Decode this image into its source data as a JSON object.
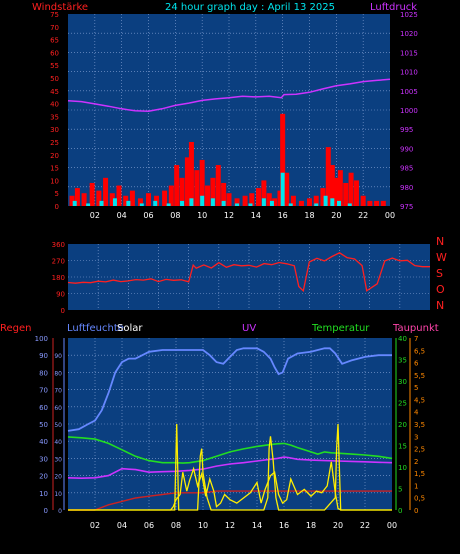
{
  "chart_data": [
    {
      "type": "line",
      "title": "24 hour graph day : April 13 2025",
      "ylabel_left": "Windstärke",
      "ylabel_right": "Luftdruck",
      "y_left_ticks": [
        "0",
        "5",
        "10",
        "15",
        "20",
        "25",
        "30",
        "35",
        "40",
        "45",
        "50",
        "55",
        "60",
        "65",
        "70",
        "75"
      ],
      "y_right_ticks": [
        "975",
        "980",
        "985",
        "990",
        "995",
        "1000",
        "1005",
        "1010",
        "1015",
        "1020",
        "1025"
      ],
      "x_ticks": [
        "02",
        "04",
        "06",
        "08",
        "10",
        "12",
        "14",
        "16",
        "18",
        "20",
        "22",
        "00"
      ],
      "ylim_left": [
        0,
        75
      ],
      "ylim_right": [
        975,
        1025
      ],
      "series": [
        {
          "name": "Luftdruck",
          "color": "#cc33ff",
          "x": [
            0,
            1,
            2,
            3,
            4,
            5,
            6,
            7,
            8,
            9,
            10,
            11,
            12,
            13,
            14,
            15,
            15.9,
            16.1,
            17,
            18,
            19,
            20,
            21,
            22,
            23,
            24
          ],
          "y": [
            1002.4,
            1002.2,
            1001.6,
            1001.0,
            1000.3,
            999.8,
            999.7,
            1000.3,
            1001.2,
            1001.8,
            1002.5,
            1002.9,
            1003.2,
            1003.6,
            1003.4,
            1003.6,
            1003.2,
            1004.0,
            1004.1,
            1004.6,
            1005.5,
            1006.3,
            1006.8,
            1007.4,
            1007.7,
            1008.0
          ]
        },
        {
          "name": "Windböen",
          "color": "#ff0000",
          "x": [
            0.3,
            0.7,
            1.2,
            1.8,
            2.3,
            2.8,
            3.3,
            3.8,
            4.3,
            4.8,
            5.4,
            6,
            6.6,
            7.2,
            7.7,
            8.1,
            8.5,
            8.9,
            9.2,
            9.6,
            10,
            10.4,
            10.8,
            11.2,
            11.6,
            12,
            12.6,
            13.2,
            13.7,
            14.2,
            14.6,
            15,
            15.4,
            15.8,
            16,
            16.3,
            16.8,
            17.4,
            18,
            18.5,
            19,
            19.4,
            19.7,
            20,
            20.3,
            20.7,
            21.1,
            21.5,
            22,
            22.5,
            23,
            23.5
          ],
          "y": [
            4,
            7,
            5,
            9,
            6,
            11,
            5,
            8,
            4,
            6,
            3,
            5,
            4,
            6,
            8,
            16,
            11,
            19,
            25,
            14,
            18,
            8,
            11,
            16,
            9,
            5,
            3,
            4,
            5,
            7,
            10,
            5,
            3,
            6,
            36,
            13,
            4,
            2,
            3,
            4,
            7,
            23,
            16,
            11,
            14,
            9,
            13,
            10,
            4,
            2,
            2,
            2
          ]
        },
        {
          "name": "Windstärke",
          "color": "#00e5ee",
          "x": [
            0.5,
            1.5,
            2.5,
            3.5,
            4.5,
            5.5,
            6.5,
            7.5,
            8.5,
            9.2,
            10,
            10.8,
            11.6,
            12.6,
            13.6,
            14.6,
            15.2,
            16,
            16.6,
            17.5,
            18.5,
            19.2,
            19.7,
            20.2,
            21,
            22,
            23
          ],
          "y": [
            2,
            1,
            2,
            3,
            2,
            1,
            2,
            1,
            2,
            3,
            4,
            3,
            2,
            1,
            1,
            3,
            2,
            13,
            1,
            0,
            1,
            4,
            3,
            2,
            1,
            0,
            0
          ]
        }
      ]
    },
    {
      "type": "scatter",
      "y_left_ticks": [
        "0",
        "90",
        "180",
        "270",
        "360"
      ],
      "y_right_labels": [
        "N",
        "W",
        "S",
        "O",
        "N"
      ],
      "ylim": [
        0,
        360
      ],
      "series": [
        {
          "name": "Windrichtung",
          "color": "#ff2020",
          "x": [
            0,
            0.5,
            1,
            1.5,
            2,
            2.5,
            3,
            3.5,
            4,
            4.5,
            5,
            5.5,
            6,
            6.5,
            7,
            7.5,
            8,
            8.3,
            8.5,
            9,
            9.5,
            10,
            10.5,
            11,
            11.5,
            12,
            12.5,
            13,
            13.5,
            14,
            14.5,
            15,
            15.3,
            15.6,
            16,
            16.5,
            17,
            17.5,
            18,
            18.5,
            19,
            19.5,
            19.8,
            20.5,
            21,
            21.5,
            22,
            22.5,
            23,
            23.5,
            24
          ],
          "y": [
            150,
            146,
            151,
            149,
            157,
            153,
            163,
            155,
            159,
            166,
            163,
            170,
            155,
            167,
            162,
            165,
            154,
            245,
            228,
            246,
            229,
            258,
            233,
            247,
            241,
            244,
            234,
            253,
            247,
            259,
            252,
            241,
            128,
            105,
            262,
            282,
            268,
            292,
            312,
            286,
            278,
            242,
            105,
            143,
            268,
            283,
            268,
            271,
            242,
            236,
            236
          ]
        }
      ]
    },
    {
      "type": "line",
      "labels": [
        "Regen",
        "Luftfeuchte",
        "Solar",
        "UV",
        "Temperatur",
        "Taupunkt"
      ],
      "axis_regen_ticks": [
        "0",
        "10",
        "20",
        "30",
        "40",
        "50",
        "60",
        "70",
        "80",
        "90",
        "100"
      ],
      "axis_feuchte_ticks": [
        "0",
        "10",
        "20",
        "30",
        "40",
        "50",
        "60",
        "70",
        "80",
        "90"
      ],
      "axis_temp_ticks": [
        "0",
        "5",
        "10",
        "15",
        "20",
        "25",
        "30",
        "35",
        "40"
      ],
      "axis_uv_ticks": [
        "0",
        "0,5",
        "1",
        "1,5",
        "2",
        "2,5",
        "3",
        "3,5",
        "4",
        "4,5",
        "5",
        "5,5",
        "6",
        "6,5",
        "7"
      ],
      "x_ticks": [
        "02",
        "04",
        "06",
        "08",
        "10",
        "12",
        "14",
        "16",
        "18",
        "20",
        "22",
        "00"
      ],
      "ylim_percent": [
        0,
        100
      ],
      "series": [
        {
          "name": "Luftfeuchte",
          "color": "#6688ff",
          "x": [
            0,
            0.8,
            1.5,
            2,
            2.5,
            3,
            3.5,
            4,
            4.5,
            5,
            5.5,
            6,
            7,
            8,
            9,
            10,
            10.5,
            11,
            11.5,
            12,
            12.5,
            13,
            14,
            14.5,
            15,
            15.3,
            15.6,
            15.9,
            16.3,
            17,
            18,
            19,
            19.4,
            19.8,
            20.3,
            21,
            22,
            23,
            24
          ],
          "y": [
            46,
            47,
            50,
            52,
            58,
            68,
            80,
            86,
            88,
            88,
            90,
            92,
            93,
            93,
            93,
            93,
            90,
            86,
            85,
            89,
            93,
            94,
            94,
            92,
            88,
            83,
            79,
            80,
            88,
            91,
            92,
            94,
            94,
            91,
            85,
            87,
            89,
            90,
            90
          ]
        },
        {
          "name": "Temperatur",
          "color": "#22dd22",
          "x": [
            0,
            1,
            2,
            3,
            4,
            5,
            6,
            7,
            8,
            8.5,
            9,
            10,
            11,
            12,
            13,
            14,
            15,
            15.5,
            16,
            16.5,
            17,
            17.5,
            18,
            18.5,
            19,
            19.5,
            20,
            21,
            22,
            23,
            24
          ],
          "y": [
            17,
            16.8,
            16.5,
            15.5,
            14,
            12.5,
            11.5,
            11,
            11,
            10.9,
            11,
            11.5,
            12.5,
            13.5,
            14.2,
            14.8,
            15.2,
            15.4,
            15.5,
            15.1,
            14.5,
            14,
            13.5,
            13,
            13.5,
            13.3,
            13.2,
            13,
            12.8,
            12.5,
            12
          ]
        },
        {
          "name": "Taupunkt",
          "color": "#cc33ff",
          "x": [
            0,
            1,
            2,
            3,
            4,
            5,
            6,
            7,
            8,
            9,
            10,
            11,
            12,
            13,
            14,
            15,
            15.5,
            16,
            16.3,
            17,
            18,
            19,
            20,
            21,
            22,
            23,
            24
          ],
          "y": [
            7.5,
            7.4,
            7.5,
            8,
            9.6,
            9.4,
            8.8,
            8.9,
            9,
            9.2,
            9.5,
            10.2,
            10.7,
            11,
            11.4,
            11.8,
            12,
            12.3,
            12.2,
            11.8,
            11.6,
            11.5,
            11.4,
            11.3,
            11.2,
            11.1,
            11
          ]
        },
        {
          "name": "Solar",
          "color": "#ffee00",
          "x": [
            0,
            7.6,
            7.8,
            8,
            8.3,
            8.5,
            8.8,
            9,
            9.3,
            9.6,
            9.9,
            10.2,
            10.5,
            10.8,
            11,
            11.3,
            11.6,
            12,
            12.5,
            13,
            13.5,
            14,
            14.3,
            14.6,
            15,
            15.3,
            15.6,
            15.9,
            16.2,
            16.5,
            17,
            17.5,
            18,
            18.4,
            18.8,
            19.2,
            19.5,
            19.8,
            20,
            20.2,
            20.5,
            24
          ],
          "y": [
            0,
            0,
            2,
            6,
            9,
            22,
            11,
            17,
            24,
            14,
            21,
            8,
            18,
            11,
            2,
            4,
            9,
            6,
            4,
            7,
            10,
            16,
            4,
            12,
            20,
            22,
            9,
            4,
            6,
            18,
            9,
            12,
            8,
            11,
            10,
            14,
            28,
            10,
            1,
            0,
            0,
            0
          ]
        },
        {
          "name": "UV",
          "color": "#ffee00",
          "x": [
            0,
            7.9,
            8.05,
            8.2,
            8.6,
            9.6,
            9.8,
            9.9,
            10,
            10.3,
            10.6,
            11,
            12,
            13,
            14,
            14.5,
            14.8,
            14.9,
            15,
            15.2,
            15.4,
            15.6,
            16,
            17,
            18,
            19,
            19.8,
            19.9,
            20,
            20.2,
            24
          ],
          "y": [
            0,
            0,
            3.5,
            0,
            0,
            0,
            2.2,
            2.5,
            1.5,
            0.5,
            0,
            0,
            0,
            0,
            0,
            0,
            0.5,
            2.5,
            3,
            2,
            0.5,
            0,
            0,
            0,
            0,
            0,
            0.5,
            2.5,
            3.5,
            0,
            0
          ]
        },
        {
          "name": "Regen",
          "color": "#cc2222",
          "x": [
            0,
            2,
            3,
            4,
            5,
            6,
            7,
            8,
            9,
            10,
            11,
            12,
            13,
            14,
            15,
            16,
            17,
            18,
            19,
            20,
            21,
            22,
            23,
            24
          ],
          "y": [
            0,
            0,
            3,
            5,
            7,
            8,
            9,
            10,
            10,
            10,
            11,
            11,
            11,
            11,
            11,
            11,
            11,
            11,
            11,
            11,
            11,
            11,
            11,
            11
          ]
        }
      ]
    }
  ]
}
